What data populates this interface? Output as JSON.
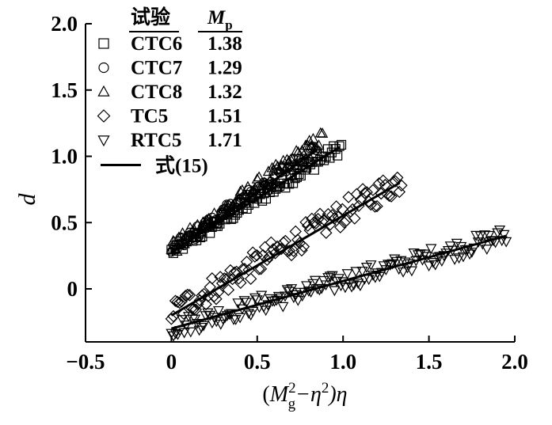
{
  "chart_data": {
    "type": "scatter",
    "xlabel_parts": {
      "open": "(",
      "M": "M",
      "sup2": "2",
      "sub_g": "g",
      "minus_eta": "−η",
      "sup2b": "2",
      "close_eta": ")η"
    },
    "ylabel": "d",
    "xlim": [
      -0.5,
      2.0
    ],
    "ylim": [
      -0.4,
      2.0
    ],
    "x_ticks": [
      {
        "value": -0.5,
        "label": "−0.5"
      },
      {
        "value": 0,
        "label": "0"
      },
      {
        "value": 0.5,
        "label": "0.5"
      },
      {
        "value": 1.0,
        "label": "1.0"
      },
      {
        "value": 1.5,
        "label": "1.5"
      },
      {
        "value": 2.0,
        "label": "2.0"
      }
    ],
    "y_ticks": [
      {
        "value": 0,
        "label": "0"
      },
      {
        "value": 0.5,
        "label": "0.5"
      },
      {
        "value": 1.0,
        "label": "1.0"
      },
      {
        "value": 1.5,
        "label": "1.5"
      },
      {
        "value": 2.0,
        "label": "2.0"
      }
    ],
    "grid": false,
    "legend_position": "top-left",
    "legend_header": {
      "test": "试验",
      "mp_main": "M",
      "mp_sub": "p"
    },
    "series": [
      {
        "name": "CTC6",
        "mp": "1.38",
        "marker": "square",
        "x_range": [
          0,
          0.99
        ],
        "fit": {
          "slope": 0.8,
          "intercept": 0.28
        },
        "noise": 0.05
      },
      {
        "name": "CTC7",
        "mp": "1.29",
        "marker": "circle",
        "x_range": [
          0,
          0.85
        ],
        "fit": {
          "slope": 0.92,
          "intercept": 0.29
        },
        "noise": 0.05
      },
      {
        "name": "CTC8",
        "mp": "1.32",
        "marker": "triangle-up",
        "x_range": [
          0,
          0.88
        ],
        "fit": {
          "slope": 0.95,
          "intercept": 0.3
        },
        "noise": 0.06
      },
      {
        "name": "TC5",
        "mp": "1.51",
        "marker": "diamond",
        "x_range": [
          0,
          1.34
        ],
        "fit": {
          "slope": 0.75,
          "intercept": -0.18
        },
        "noise": 0.1
      },
      {
        "name": "RTC5",
        "mp": "1.71",
        "marker": "triangle-down",
        "x_range": [
          0,
          1.95
        ],
        "fit": {
          "slope": 0.36,
          "intercept": -0.3
        },
        "noise": 0.07
      }
    ],
    "fit_lines": [
      {
        "name": "式(15)",
        "x": [
          0,
          0.98
        ],
        "y": [
          0.28,
          1.07
        ]
      },
      {
        "name": "式(15)",
        "x": [
          0,
          0.85
        ],
        "y": [
          0.27,
          1.05
        ]
      },
      {
        "name": "式(15)",
        "x": [
          0,
          1.33
        ],
        "y": [
          -0.2,
          0.8
        ]
      },
      {
        "name": "式(15)",
        "x": [
          0,
          1.95
        ],
        "y": [
          -0.3,
          0.4
        ]
      }
    ],
    "legend_fit_label": "式(15)"
  }
}
